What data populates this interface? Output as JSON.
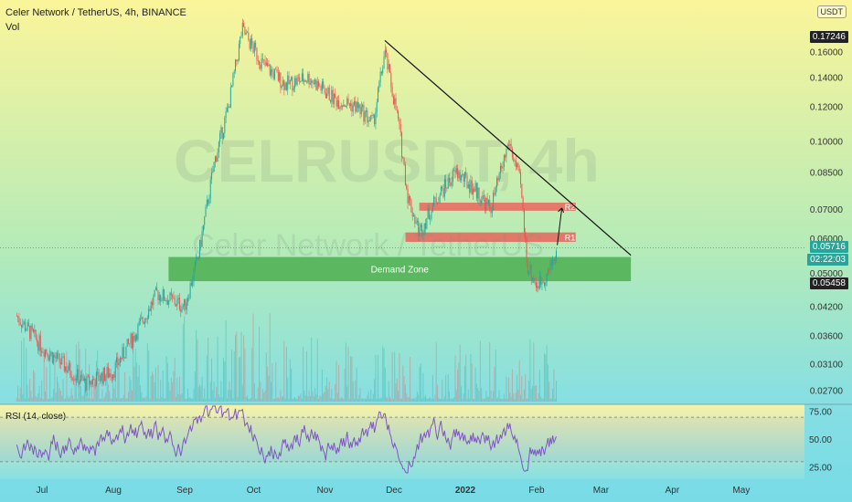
{
  "header": {
    "title": "Celer Network / TetherUS, 4h, BINANCE",
    "vol_label": "Vol",
    "currency": "USDT"
  },
  "watermark": {
    "symbol": "CELRUSDT, 4h",
    "name": "Celer Network / TetherUS"
  },
  "labels": {
    "price_high": "0.17246",
    "price_last": "0.05716",
    "countdown": "02:22:03",
    "demand_price": "0.05458",
    "demand_zone": "Demand Zone",
    "r1": "R1",
    "r2": "R2",
    "rsi": "RSI (14, close)"
  },
  "colors": {
    "candle_up": "#26a69a",
    "candle_down": "#ef5350",
    "demand_zone": "#4caf50",
    "resistance": "#ef5350",
    "rsi_line": "#7e57c2",
    "last_price": "#26a69a"
  },
  "chart_data": [
    {
      "type": "candlestick",
      "title": "Celer Network / TetherUS, 4h, BINANCE",
      "y_scale": "log",
      "y_ticks": [
        0.027,
        0.031,
        0.036,
        0.042,
        0.05,
        0.06,
        0.07,
        0.085,
        0.1,
        0.12,
        0.14,
        0.16
      ],
      "y_tick_labels": [
        "0.02700",
        "0.03100",
        "0.03600",
        "0.04200",
        "0.05000",
        "0.06000",
        "0.07000",
        "0.08500",
        "0.10000",
        "0.12000",
        "0.14000",
        "0.16000"
      ],
      "x_ticks": [
        "Jul",
        "Aug",
        "Sep",
        "Oct",
        "Nov",
        "Dec",
        "2022",
        "Feb",
        "Mar",
        "Apr",
        "May"
      ],
      "price_path": [
        {
          "date": "2021-06-20",
          "price": 0.04
        },
        {
          "date": "2021-07-01",
          "price": 0.034
        },
        {
          "date": "2021-07-10",
          "price": 0.031
        },
        {
          "date": "2021-07-20",
          "price": 0.028
        },
        {
          "date": "2021-08-01",
          "price": 0.03
        },
        {
          "date": "2021-08-10",
          "price": 0.036
        },
        {
          "date": "2021-08-20",
          "price": 0.045
        },
        {
          "date": "2021-09-01",
          "price": 0.042
        },
        {
          "date": "2021-09-07",
          "price": 0.055
        },
        {
          "date": "2021-09-14",
          "price": 0.09
        },
        {
          "date": "2021-09-20",
          "price": 0.12
        },
        {
          "date": "2021-09-26",
          "price": 0.18
        },
        {
          "date": "2021-10-05",
          "price": 0.15
        },
        {
          "date": "2021-10-15",
          "price": 0.135
        },
        {
          "date": "2021-10-25",
          "price": 0.14
        },
        {
          "date": "2021-11-05",
          "price": 0.125
        },
        {
          "date": "2021-11-15",
          "price": 0.12
        },
        {
          "date": "2021-11-22",
          "price": 0.11
        },
        {
          "date": "2021-11-27",
          "price": 0.16
        },
        {
          "date": "2021-12-03",
          "price": 0.11
        },
        {
          "date": "2021-12-07",
          "price": 0.075
        },
        {
          "date": "2021-12-12",
          "price": 0.062
        },
        {
          "date": "2021-12-20",
          "price": 0.075
        },
        {
          "date": "2021-12-28",
          "price": 0.085
        },
        {
          "date": "2022-01-05",
          "price": 0.078
        },
        {
          "date": "2022-01-12",
          "price": 0.07
        },
        {
          "date": "2022-01-20",
          "price": 0.1
        },
        {
          "date": "2022-01-25",
          "price": 0.08
        },
        {
          "date": "2022-01-28",
          "price": 0.052
        },
        {
          "date": "2022-02-01",
          "price": 0.047
        },
        {
          "date": "2022-02-06",
          "price": 0.05
        },
        {
          "date": "2022-02-10",
          "price": 0.057
        }
      ],
      "zones": [
        {
          "label": "Demand Zone",
          "low": 0.048,
          "high": 0.0545,
          "from": "2021-08-25",
          "to": "2022-03-14"
        },
        {
          "label": "R1",
          "low": 0.059,
          "high": 0.062,
          "from": "2021-12-06",
          "to": "2022-02-18"
        },
        {
          "label": "R2",
          "low": 0.0695,
          "high": 0.0725,
          "from": "2021-12-12",
          "to": "2022-02-18"
        }
      ],
      "trendline": [
        {
          "date": "2021-11-27",
          "price": 0.17
        },
        {
          "date": "2022-03-14",
          "price": 0.055
        }
      ],
      "last_price": 0.05716,
      "high_price": 0.17246
    },
    {
      "type": "line",
      "title": "RSI (14, close)",
      "y_ticks": [
        25,
        50,
        75
      ],
      "y_tick_labels": [
        "25.00",
        "50.00",
        "75.00"
      ],
      "band": [
        30,
        70
      ]
    }
  ]
}
